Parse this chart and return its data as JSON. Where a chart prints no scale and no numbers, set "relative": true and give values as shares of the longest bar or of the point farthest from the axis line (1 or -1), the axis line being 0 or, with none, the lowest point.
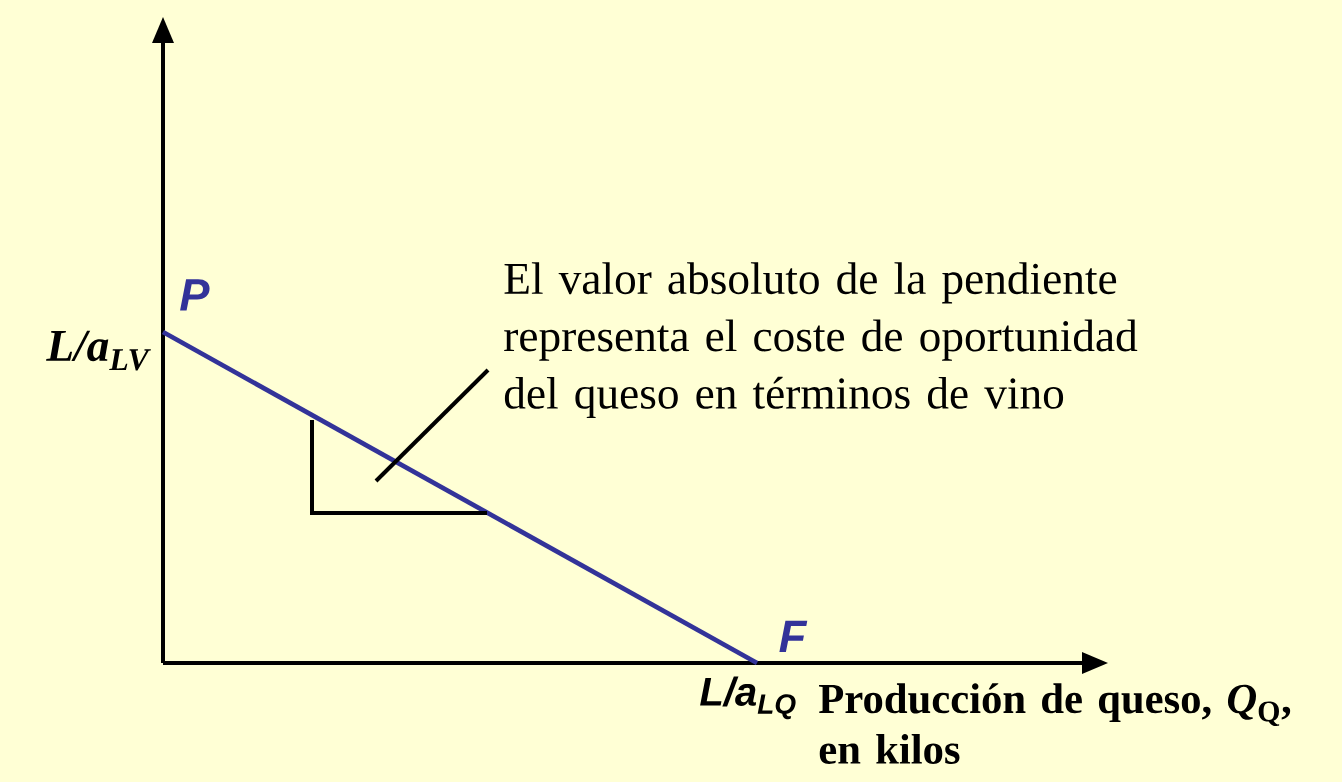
{
  "chart_data": {
    "type": "line",
    "relative": true,
    "categories": [
      null,
      null
    ],
    "values": [
      1,
      0
    ],
    "color": "#333399",
    "xlabel": "Producción de queso, *Q*$_{Q}$, en kilos",
    "annotations": [
      "P",
      "L/a$_{LV}$",
      "F",
      "L/a$_{LQ}$",
      "El valor absoluto de la pendiente representa el coste de oportunidad del queso en términos de vino"
    ]
  }
}
